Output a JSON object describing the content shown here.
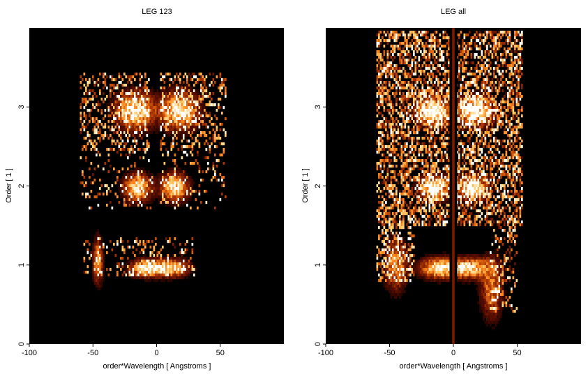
{
  "chart_data": [
    {
      "type": "heatmap",
      "title": "LEG 123",
      "xlabel": "order*Wavelength [ Angstroms ]",
      "ylabel": "Order [ 1 ]",
      "xlim": [
        -100,
        100
      ],
      "ylim": [
        0,
        4
      ],
      "x_ticks": [
        -100,
        -50,
        0,
        50
      ],
      "x_tick_labels": [
        "-100",
        "-50",
        "0",
        "50"
      ],
      "y_ticks": [
        0,
        1,
        2,
        3
      ],
      "y_tick_labels": [
        "0",
        "1",
        "2",
        "3"
      ],
      "colormap": [
        "#000000",
        "#5a0d00",
        "#b03a00",
        "#ff8a20",
        "#ffd070",
        "#ffffff"
      ],
      "background": "#000000",
      "blobs": [
        {
          "x": -17,
          "y": 2.95,
          "wx": 14,
          "wy": 0.22,
          "amp": 1.0
        },
        {
          "x": 18,
          "y": 2.95,
          "wx": 14,
          "wy": 0.22,
          "amp": 1.0
        },
        {
          "x": -15,
          "y": 1.98,
          "wx": 10,
          "wy": 0.16,
          "amp": 1.0
        },
        {
          "x": 14,
          "y": 1.98,
          "wx": 10,
          "wy": 0.16,
          "amp": 1.0
        },
        {
          "x": -9,
          "y": 0.96,
          "wx": 11,
          "wy": 0.1,
          "amp": 1.0
        },
        {
          "x": 11,
          "y": 0.96,
          "wx": 13,
          "wy": 0.1,
          "amp": 1.0
        },
        {
          "x": -46,
          "y": 1.05,
          "wx": 3.5,
          "wy": 0.25,
          "amp": 0.8
        }
      ],
      "noise_regions": [
        {
          "x0": -60,
          "x1": -5,
          "y0": 2.45,
          "y1": 3.45,
          "density": 0.35
        },
        {
          "x0": 3,
          "x1": 55,
          "y0": 2.45,
          "y1": 3.45,
          "density": 0.35
        },
        {
          "x0": -60,
          "x1": -3,
          "y0": 1.7,
          "y1": 2.45,
          "density": 0.15
        },
        {
          "x0": 3,
          "x1": 55,
          "y0": 1.7,
          "y1": 2.45,
          "density": 0.15
        },
        {
          "x0": -58,
          "x1": 30,
          "y0": 0.85,
          "y1": 1.35,
          "density": 0.2
        }
      ],
      "stripes": []
    },
    {
      "type": "heatmap",
      "title": "LEG all",
      "xlabel": "order*Wavelength [ Angstroms ]",
      "ylabel": "Order [ 1 ]",
      "xlim": [
        -100,
        100
      ],
      "ylim": [
        0,
        4
      ],
      "x_ticks": [
        -100,
        -50,
        0,
        50
      ],
      "x_tick_labels": [
        "-100",
        "-50",
        "0",
        "50"
      ],
      "y_ticks": [
        0,
        1,
        2,
        3
      ],
      "y_tick_labels": [
        "0",
        "1",
        "2",
        "3"
      ],
      "colormap": [
        "#000000",
        "#5a0d00",
        "#b03a00",
        "#ff8a20",
        "#ffd070",
        "#ffffff"
      ],
      "background": "#000000",
      "blobs": [
        {
          "x": -16,
          "y": 2.95,
          "wx": 13,
          "wy": 0.18,
          "amp": 1.0
        },
        {
          "x": 17,
          "y": 2.95,
          "wx": 13,
          "wy": 0.18,
          "amp": 1.0
        },
        {
          "x": -15,
          "y": 1.98,
          "wx": 11,
          "wy": 0.15,
          "amp": 1.0
        },
        {
          "x": 15,
          "y": 1.98,
          "wx": 11,
          "wy": 0.15,
          "amp": 1.0
        },
        {
          "x": -12,
          "y": 0.96,
          "wx": 13,
          "wy": 0.12,
          "amp": 1.0
        },
        {
          "x": 12,
          "y": 0.96,
          "wx": 15,
          "wy": 0.12,
          "amp": 1.0
        },
        {
          "x": -45,
          "y": 1.0,
          "wx": 8,
          "wy": 0.3,
          "amp": 0.7
        },
        {
          "x": 30,
          "y": 0.7,
          "wx": 8,
          "wy": 0.35,
          "amp": 0.6
        }
      ],
      "noise_regions": [
        {
          "x0": -60,
          "x1": 55,
          "y0": 1.5,
          "y1": 3.95,
          "density": 0.55
        },
        {
          "x0": -60,
          "x1": -30,
          "y0": 0.8,
          "y1": 1.5,
          "density": 0.4
        },
        {
          "x0": 28,
          "x1": 50,
          "y0": 0.4,
          "y1": 1.5,
          "density": 0.3
        }
      ],
      "stripes": [
        {
          "x0": -3,
          "x1": 3,
          "color": "#000000"
        },
        {
          "x0": -1,
          "x1": 1,
          "color": "#7a1a00"
        }
      ]
    }
  ]
}
